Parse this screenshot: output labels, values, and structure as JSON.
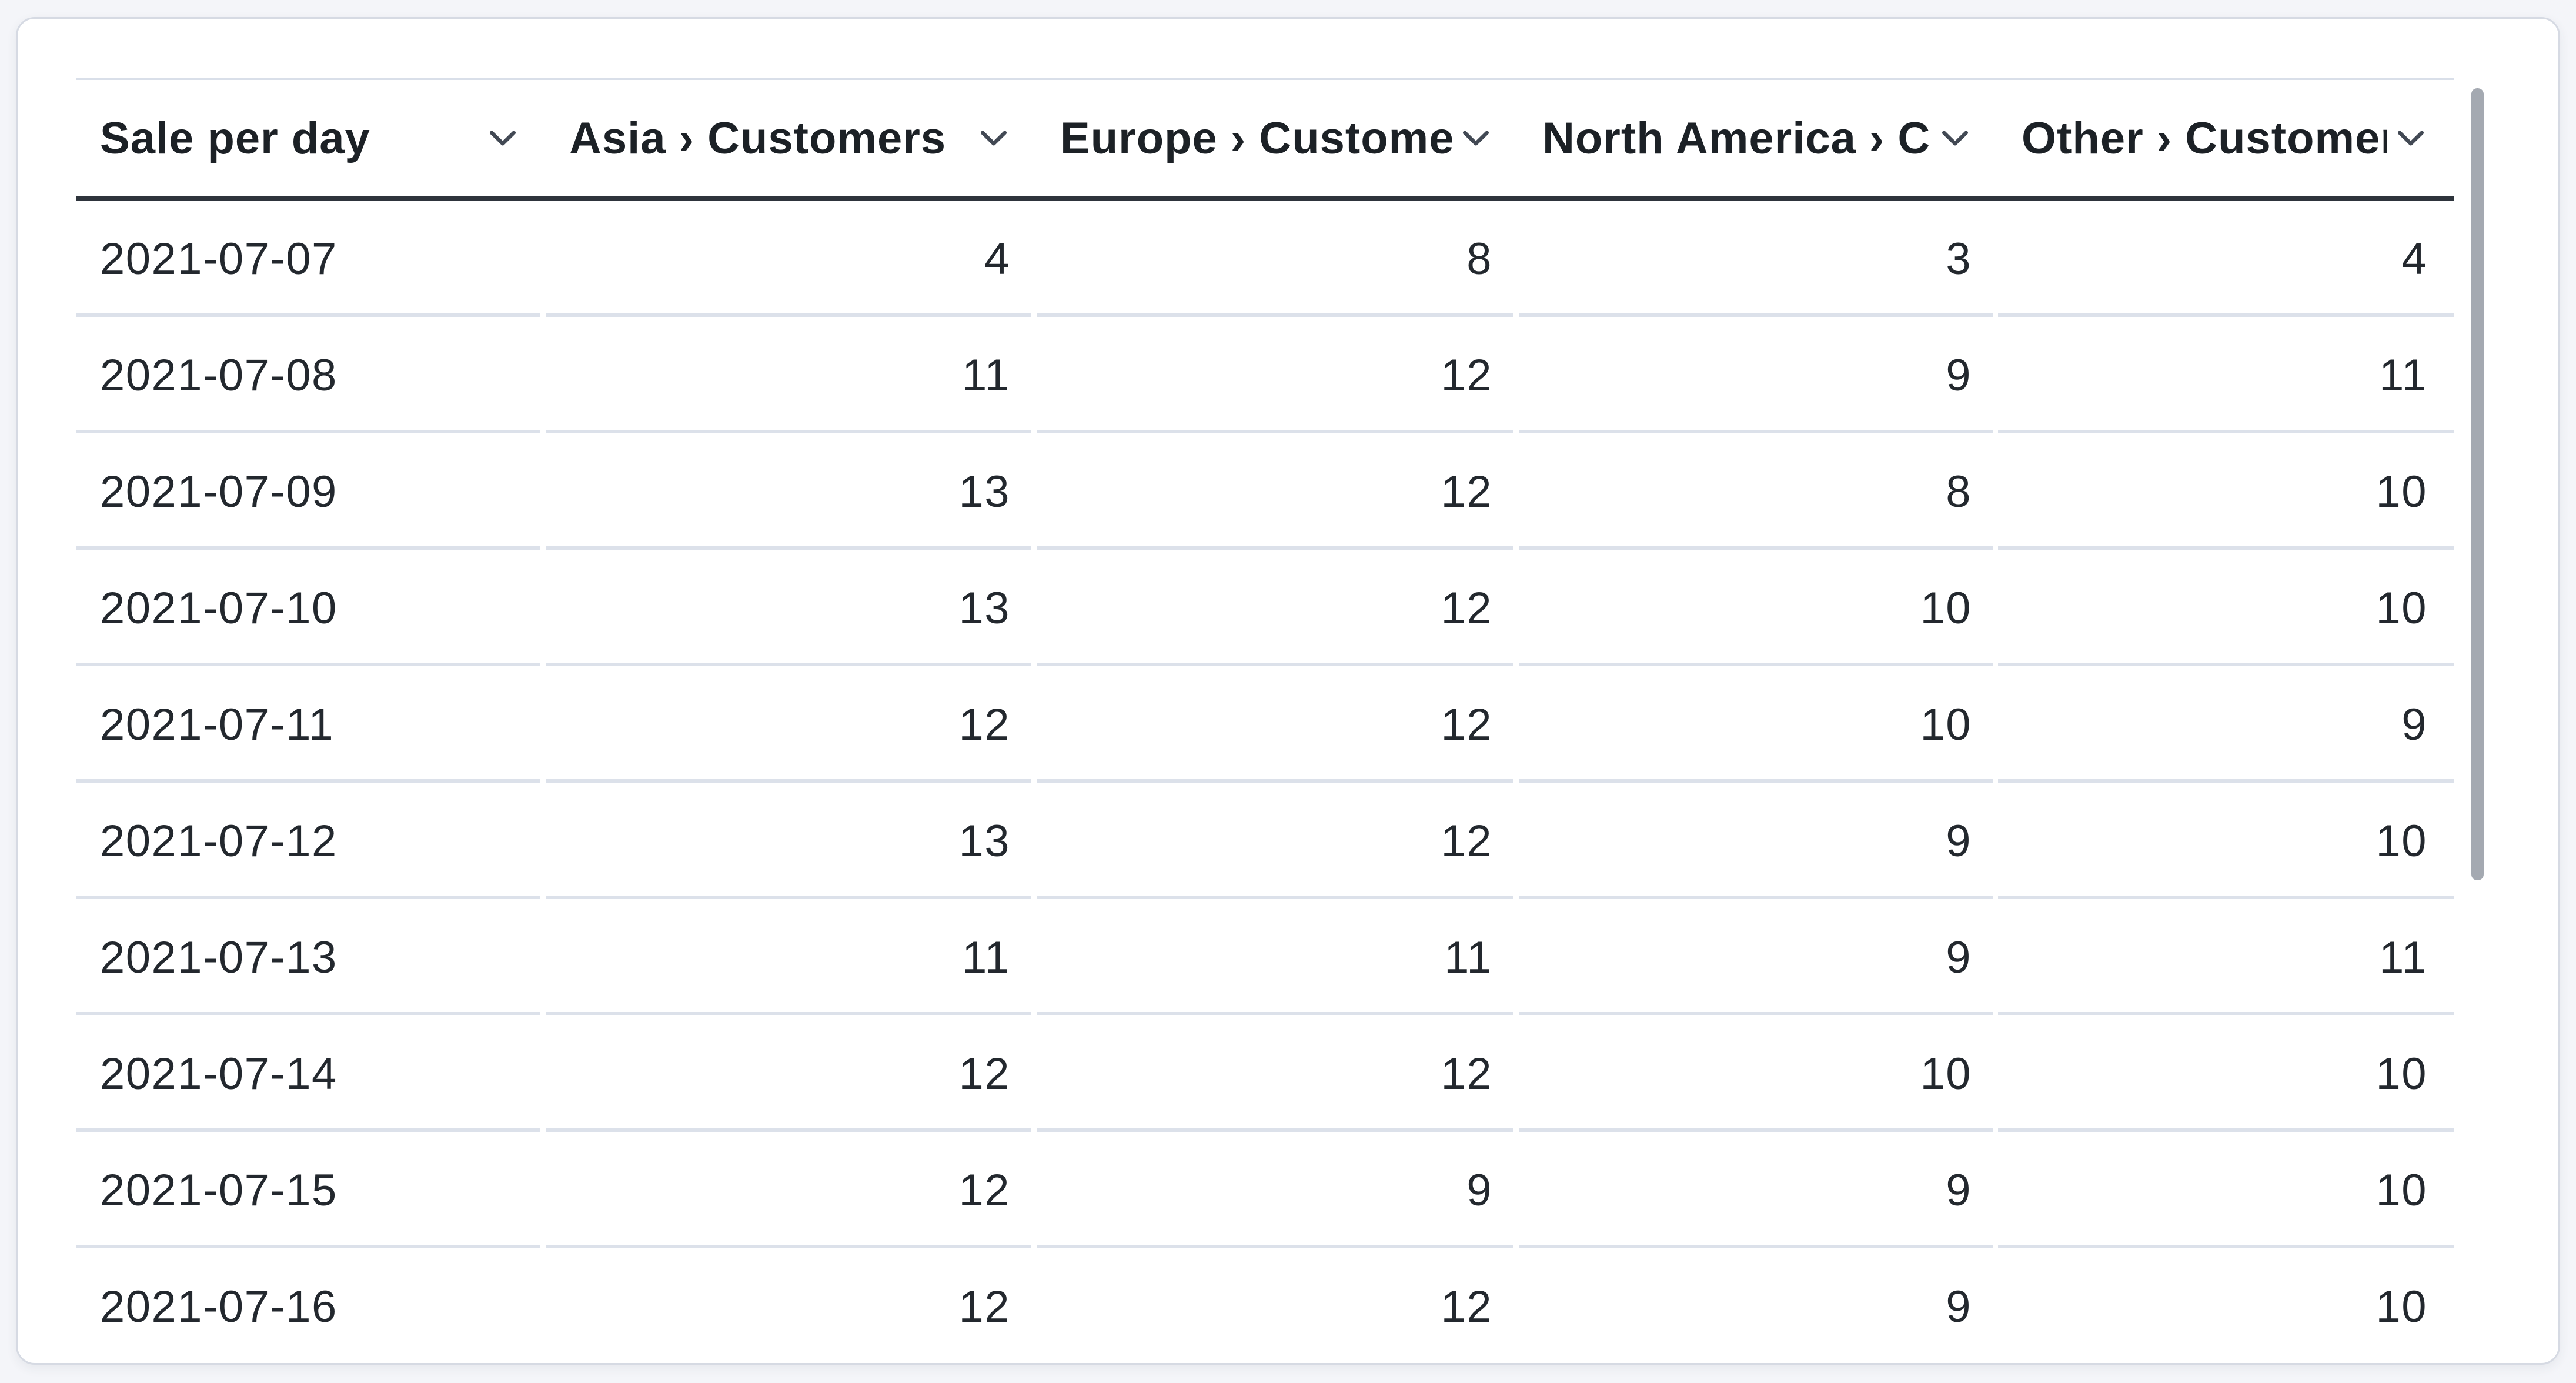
{
  "card": {
    "type": "table-card",
    "visible_rows_partially_scrolled": true
  },
  "table": {
    "columns": [
      {
        "label": "Sale per day",
        "align": "left"
      },
      {
        "label": "Asia › Customers",
        "align": "right"
      },
      {
        "label": "Europe › Customers",
        "align": "right"
      },
      {
        "label": "North America › Customers",
        "align": "right"
      },
      {
        "label": "Other › Customers",
        "align": "right"
      }
    ],
    "rows": [
      {
        "date": "2021-07-07",
        "values": [
          4,
          8,
          3,
          4
        ]
      },
      {
        "date": "2021-07-08",
        "values": [
          11,
          12,
          9,
          11
        ]
      },
      {
        "date": "2021-07-09",
        "values": [
          13,
          12,
          8,
          10
        ]
      },
      {
        "date": "2021-07-10",
        "values": [
          13,
          12,
          10,
          10
        ]
      },
      {
        "date": "2021-07-11",
        "values": [
          12,
          12,
          10,
          9
        ]
      },
      {
        "date": "2021-07-12",
        "values": [
          13,
          12,
          9,
          10
        ]
      },
      {
        "date": "2021-07-13",
        "values": [
          11,
          11,
          9,
          11
        ]
      },
      {
        "date": "2021-07-14",
        "values": [
          12,
          12,
          10,
          10
        ]
      },
      {
        "date": "2021-07-15",
        "values": [
          12,
          9,
          9,
          10
        ]
      },
      {
        "date": "2021-07-16",
        "values": [
          12,
          12,
          9,
          10
        ]
      }
    ]
  },
  "icons": {
    "sort_chevron": "chevron-down-icon"
  },
  "scrollbar": {
    "orientation": "vertical",
    "thumb_visible": true
  },
  "colors": {
    "page_bg": "#f4f5f9",
    "card_bg": "#ffffff",
    "card_border": "#d6dae3",
    "table_top_border": "#d9dfe9",
    "header_underline": "#2e343c",
    "row_divider": "#dce1ea",
    "text": "#23282e",
    "header_text": "#1c2126",
    "chevron": "#424954",
    "scrollbar_thumb": "#a4a9b1"
  }
}
